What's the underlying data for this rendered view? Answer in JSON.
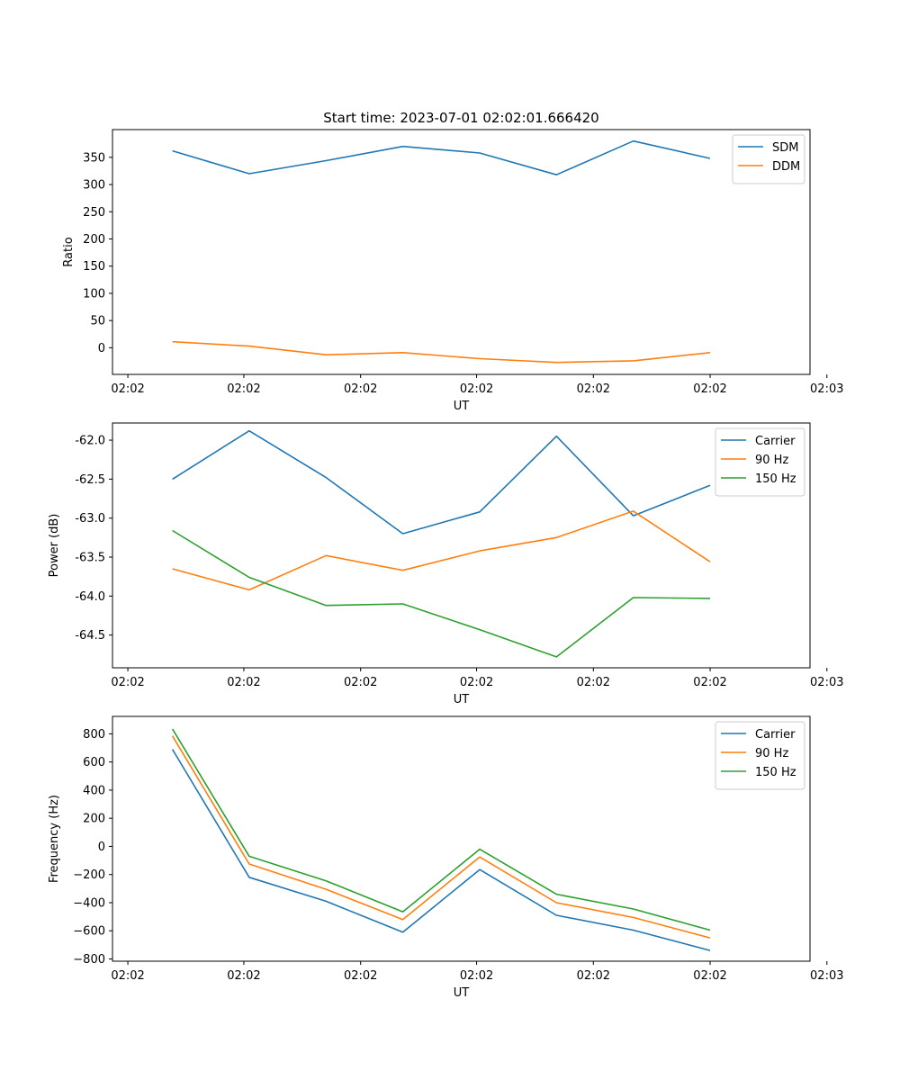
{
  "figure": {
    "title": "Start time: 2023-07-01 02:02:01.666420"
  },
  "colors": {
    "blue": "#1f77b4",
    "orange": "#ff7f0e",
    "green": "#2ca02c"
  },
  "chart_data": [
    {
      "type": "line",
      "xlabel": "UT",
      "ylabel": "Ratio",
      "x": [
        1,
        2,
        3,
        4,
        5,
        6,
        7,
        8
      ],
      "xlim": [
        0.22,
        9.3
      ],
      "x_ticks": [
        0.42,
        1.93,
        3.45,
        4.96,
        6.48,
        8.0,
        9.52
      ],
      "x_tick_labels": [
        "02:02",
        "02:02",
        "02:02",
        "02:02",
        "02:02",
        "02:02",
        "02:03"
      ],
      "ylim": [
        -49,
        401
      ],
      "y_ticks": [
        0,
        50,
        100,
        150,
        200,
        250,
        300,
        350
      ],
      "y_tick_labels": [
        "0",
        "50",
        "100",
        "150",
        "200",
        "250",
        "300",
        "350"
      ],
      "legend": "top-right",
      "series": [
        {
          "name": "SDM",
          "color": "blue",
          "values": [
            362,
            320,
            344,
            370,
            358,
            318,
            380,
            348
          ]
        },
        {
          "name": "DDM",
          "color": "orange",
          "values": [
            11,
            3,
            -13,
            -9,
            -20,
            -27,
            -24,
            -9
          ]
        }
      ]
    },
    {
      "type": "line",
      "xlabel": "UT",
      "ylabel": "Power (dB)",
      "x": [
        1,
        2,
        3,
        4,
        5,
        6,
        7,
        8
      ],
      "xlim": [
        0.22,
        9.3
      ],
      "x_ticks": [
        0.42,
        1.93,
        3.45,
        4.96,
        6.48,
        8.0,
        9.52
      ],
      "x_tick_labels": [
        "02:02",
        "02:02",
        "02:02",
        "02:02",
        "02:02",
        "02:02",
        "02:03"
      ],
      "ylim": [
        -64.92,
        -61.78
      ],
      "y_ticks": [
        -64.5,
        -64.0,
        -63.5,
        -63.0,
        -62.5,
        -62.0
      ],
      "y_tick_labels": [
        "-64.5",
        "-64.0",
        "-63.5",
        "-63.0",
        "-62.5",
        "-62.0"
      ],
      "legend": "top-right",
      "series": [
        {
          "name": "Carrier",
          "color": "blue",
          "values": [
            -62.5,
            -61.88,
            -62.48,
            -63.2,
            -62.92,
            -61.95,
            -62.97,
            -62.58
          ]
        },
        {
          "name": "90 Hz",
          "color": "orange",
          "values": [
            -63.65,
            -63.92,
            -63.48,
            -63.67,
            -63.42,
            -63.25,
            -62.91,
            -63.56
          ]
        },
        {
          "name": "150 Hz",
          "color": "green",
          "values": [
            -63.16,
            -63.76,
            -64.12,
            -64.1,
            -64.43,
            -64.78,
            -64.02,
            -64.03
          ]
        }
      ]
    },
    {
      "type": "line",
      "xlabel": "UT",
      "ylabel": "Frequency (Hz)",
      "x": [
        1,
        2,
        3,
        4,
        5,
        6,
        7,
        8
      ],
      "xlim": [
        0.22,
        9.3
      ],
      "x_ticks": [
        0.42,
        1.93,
        3.45,
        4.96,
        6.48,
        8.0,
        9.52
      ],
      "x_tick_labels": [
        "02:02",
        "02:02",
        "02:02",
        "02:02",
        "02:02",
        "02:02",
        "02:03"
      ],
      "ylim": [
        -816,
        924
      ],
      "y_ticks": [
        -800,
        -600,
        -400,
        -200,
        0,
        200,
        400,
        600,
        800
      ],
      "y_tick_labels": [
        "−800",
        "−600",
        "−400",
        "−200",
        "0",
        "200",
        "400",
        "600",
        "800"
      ],
      "legend": "top-right",
      "series": [
        {
          "name": "Carrier",
          "color": "blue",
          "values": [
            690,
            -220,
            -390,
            -610,
            -165,
            -490,
            -595,
            -740
          ]
        },
        {
          "name": "90 Hz",
          "color": "orange",
          "values": [
            785,
            -125,
            -305,
            -520,
            -75,
            -400,
            -505,
            -650
          ]
        },
        {
          "name": "150 Hz",
          "color": "green",
          "values": [
            835,
            -70,
            -245,
            -465,
            -20,
            -340,
            -445,
            -595
          ]
        }
      ]
    }
  ]
}
